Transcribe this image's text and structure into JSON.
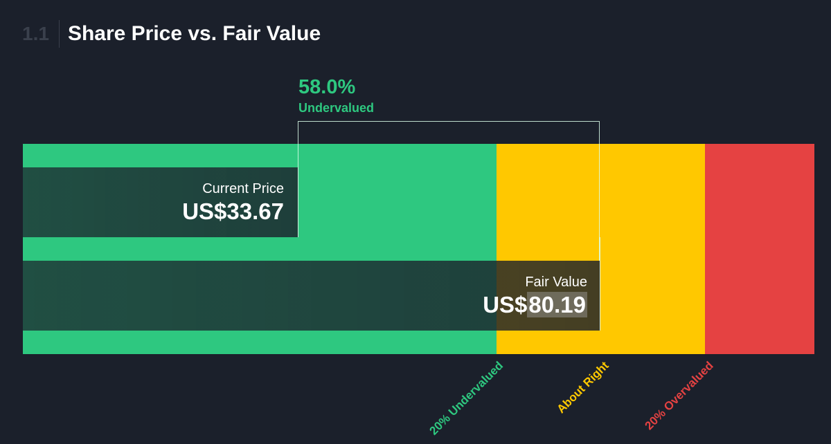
{
  "header": {
    "section_number": "1.1",
    "title": "Share Price vs. Fair Value"
  },
  "valuation": {
    "percent": "58.0%",
    "status": "Undervalued"
  },
  "current_price": {
    "label": "Current Price",
    "value": "US$33.67"
  },
  "fair_value": {
    "label": "Fair Value",
    "currency": "US$",
    "number": "80.19"
  },
  "zones": {
    "undervalued": "20% Undervalued",
    "about_right": "About Right",
    "overvalued": "20% Overvalued"
  },
  "colors": {
    "background": "#1b202b",
    "undervalued": "#2ec880",
    "about_right": "#ffc800",
    "overvalued": "#e54242"
  },
  "chart_data": {
    "type": "bar",
    "title": "Share Price vs. Fair Value",
    "categories": [
      "Current Price",
      "Fair Value"
    ],
    "values": [
      33.67,
      80.19
    ],
    "value_labels": [
      "US$33.67",
      "US$80.19"
    ],
    "difference": {
      "percent": 58.0,
      "label": "Undervalued"
    },
    "zones": [
      {
        "name": "20% Undervalued",
        "color": "#2ec880"
      },
      {
        "name": "About Right",
        "color": "#ffc800"
      },
      {
        "name": "20% Overvalued",
        "color": "#e54242"
      }
    ]
  }
}
